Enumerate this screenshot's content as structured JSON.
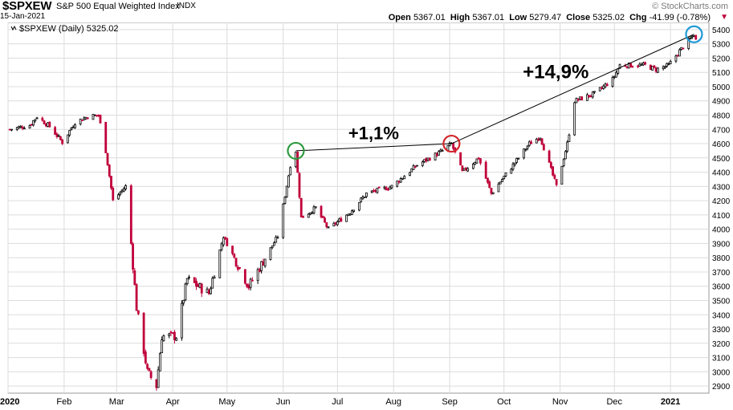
{
  "header": {
    "symbol": "$SPXEW",
    "name": "S&P 500 Equal Weighted Index",
    "type": "INDX",
    "brand": "© StockCharts.com",
    "date": "15-Jan-2021",
    "open_label": "Open",
    "open": "5367.01",
    "high_label": "High",
    "high": "5367.01",
    "low_label": "Low",
    "low": "5279.47",
    "close_label": "Close",
    "close": "5325.02",
    "chg_label": "Chg",
    "chg": "-41.99 (-0.78%)",
    "chg_arrow": "▼"
  },
  "legend": {
    "text": "$SPXEW (Daily) 5325.02"
  },
  "annotations": [
    {
      "text": "+1,1%"
    },
    {
      "text": "+14,9%"
    }
  ],
  "colors": {
    "up": "#000000",
    "down": "#c0003a",
    "grid": "#dcdcdc",
    "circle_start": "#2e9b3f",
    "circle_mid": "#d2262b",
    "circle_end": "#1f9ad6",
    "trendline": "#000000"
  },
  "chart_data": {
    "type": "candlestick",
    "title": "$SPXEW S&P 500 Equal Weighted Index",
    "ylim": [
      2850,
      5450
    ],
    "y_ticks": [
      2900,
      3000,
      3100,
      3200,
      3300,
      3400,
      3500,
      3600,
      3700,
      3800,
      3900,
      4000,
      4100,
      4200,
      4300,
      4400,
      4500,
      4600,
      4700,
      4800,
      4900,
      5000,
      5100,
      5200,
      5300,
      5400
    ],
    "x_labels": [
      "2020",
      "Feb",
      "Mar",
      "Apr",
      "May",
      "Jun",
      "Jul",
      "Aug",
      "Sep",
      "Oct",
      "Nov",
      "Dec",
      "2021"
    ],
    "grid": true,
    "series": [
      {
        "points": [
          [
            "2020-01-02",
            4700
          ],
          [
            "2020-01-13",
            4730
          ],
          [
            "2020-01-17",
            4790
          ],
          [
            "2020-01-24",
            4720
          ],
          [
            "2020-01-31",
            4610
          ],
          [
            "2020-02-07",
            4750
          ],
          [
            "2020-02-14",
            4790
          ],
          [
            "2020-02-20",
            4800
          ],
          [
            "2020-02-24",
            4550
          ],
          [
            "2020-02-28",
            4200
          ],
          [
            "2020-03-06",
            4300
          ],
          [
            "2020-03-09",
            3900
          ],
          [
            "2020-03-12",
            3450
          ],
          [
            "2020-03-16",
            3150
          ],
          [
            "2020-03-18",
            3000
          ],
          [
            "2020-03-23",
            2900
          ],
          [
            "2020-03-26",
            3250
          ],
          [
            "2020-04-03",
            3250
          ],
          [
            "2020-04-09",
            3650
          ],
          [
            "2020-04-21",
            3550
          ],
          [
            "2020-04-29",
            3950
          ],
          [
            "2020-05-13",
            3600
          ],
          [
            "2020-05-29",
            3950
          ],
          [
            "2020-06-05",
            4450
          ],
          [
            "2020-06-08",
            4550
          ],
          [
            "2020-06-11",
            4080
          ],
          [
            "2020-06-19",
            4150
          ],
          [
            "2020-06-26",
            4000
          ],
          [
            "2020-07-08",
            4120
          ],
          [
            "2020-07-17",
            4250
          ],
          [
            "2020-07-31",
            4300
          ],
          [
            "2020-08-14",
            4450
          ],
          [
            "2020-08-28",
            4550
          ],
          [
            "2020-09-02",
            4600
          ],
          [
            "2020-09-08",
            4400
          ],
          [
            "2020-09-17",
            4500
          ],
          [
            "2020-09-24",
            4250
          ],
          [
            "2020-10-09",
            4500
          ],
          [
            "2020-10-15",
            4600
          ],
          [
            "2020-10-21",
            4650
          ],
          [
            "2020-10-30",
            4300
          ],
          [
            "2020-11-05",
            4600
          ],
          [
            "2020-11-09",
            4900
          ],
          [
            "2020-11-20",
            4950
          ],
          [
            "2020-11-30",
            5050
          ],
          [
            "2020-12-04",
            5150
          ],
          [
            "2020-12-10",
            5150
          ],
          [
            "2020-12-18",
            5150
          ],
          [
            "2020-12-24",
            5120
          ],
          [
            "2020-12-31",
            5150
          ],
          [
            "2021-01-06",
            5250
          ],
          [
            "2021-01-11",
            5320
          ],
          [
            "2021-01-14",
            5367
          ],
          [
            "2021-01-15",
            5325
          ]
        ]
      }
    ],
    "markers": [
      {
        "date": "2020-06-08",
        "value": 4550
      },
      {
        "date": "2020-09-02",
        "value": 4600
      },
      {
        "date": "2021-01-14",
        "value": 5367
      }
    ]
  }
}
